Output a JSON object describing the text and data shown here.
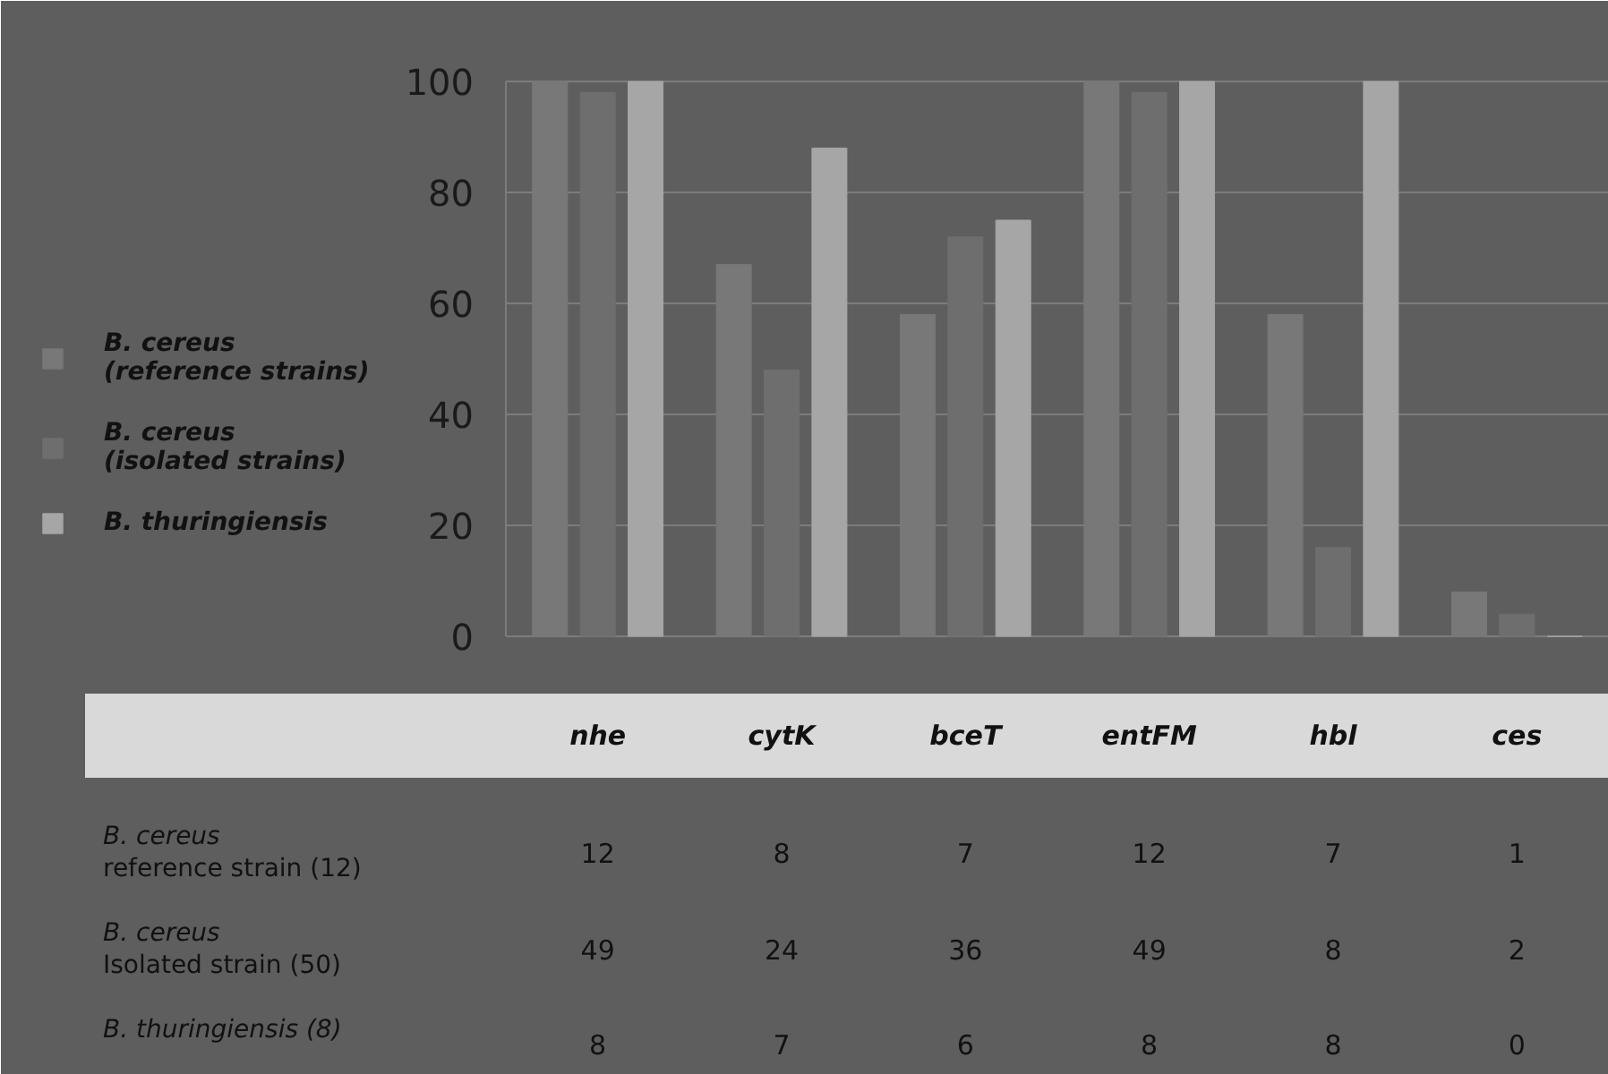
{
  "chart_data": [
    {
      "type": "bar",
      "categories": [
        null,
        null,
        null,
        null,
        null,
        null
      ],
      "series": [
        {
          "name": "B. cereus\n(reference strains)",
          "color": "#787878",
          "values": [
            100,
            67,
            58,
            100,
            58,
            8
          ]
        },
        {
          "name": "B. cereus\n(isolated strains)",
          "color": "#6e6e6e",
          "values": [
            98,
            48,
            72,
            98,
            16,
            4
          ]
        },
        {
          "name": "B. thuringiensis",
          "color": "#a6a6a6",
          "values": [
            100,
            88,
            75,
            100,
            100,
            0
          ]
        }
      ],
      "ylim": [
        0,
        100
      ],
      "yticks": [
        0,
        20,
        40,
        60,
        80,
        100
      ],
      "grid": "y",
      "legend": "left",
      "tick_labels": "y"
    },
    {
      "type": "heatmap",
      "categories": [
        "nhe",
        "cytK",
        "bceT",
        "entFM",
        "hbl",
        "ces"
      ],
      "y_categories": [
        "B. cereus\nreference  strain (12)",
        "B. cereus\nIsolated strain (50)",
        "B. thuringiensis (8)"
      ],
      "cells": [
        [
          12,
          8,
          7,
          12,
          7,
          1
        ],
        [
          49,
          24,
          36,
          49,
          8,
          2
        ],
        [
          8,
          7,
          6,
          8,
          8,
          0
        ]
      ],
      "data_labels": true
    }
  ]
}
